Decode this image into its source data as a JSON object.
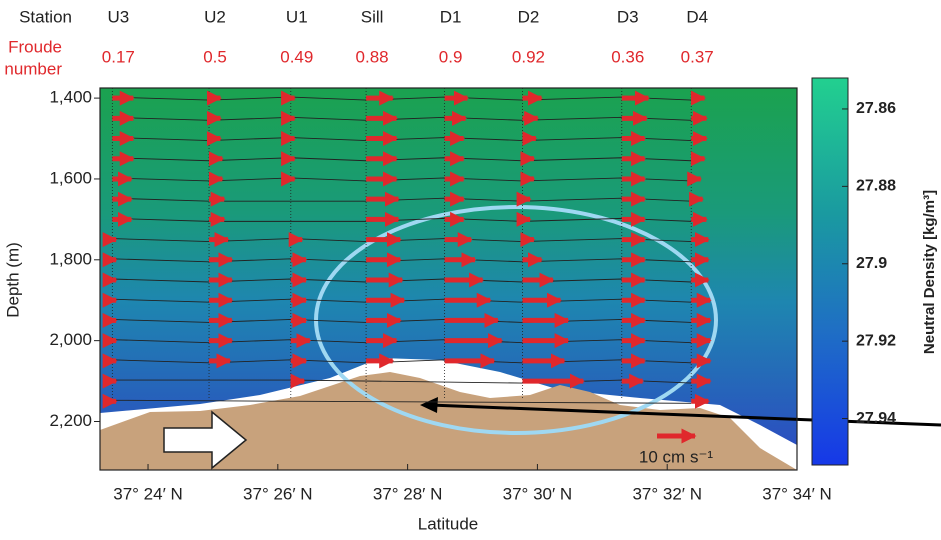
{
  "chart_data": {
    "type": "vector-section",
    "header_station": "Station",
    "header_froude": [
      "Froude",
      "number"
    ],
    "xlabel": "Latitude",
    "ylabel": "Depth (m)",
    "colorbar_label": "Neutral Density [kg/m³]",
    "xlim": [
      23.26,
      34
    ],
    "ylim": [
      1375,
      2320
    ],
    "clim": [
      27.852,
      27.952
    ],
    "xticks": [
      {
        "value": 24,
        "label": "37° 24′ N"
      },
      {
        "value": 26,
        "label": "37° 26′ N"
      },
      {
        "value": 28,
        "label": "37° 28′ N"
      },
      {
        "value": 30,
        "label": "37° 30′ N"
      },
      {
        "value": 32,
        "label": "37° 32′ N"
      },
      {
        "value": 34,
        "label": "37° 34′ N"
      }
    ],
    "yticks": [
      {
        "value": 1400,
        "label": "1,400"
      },
      {
        "value": 1600,
        "label": "1,600"
      },
      {
        "value": 1800,
        "label": "1,800"
      },
      {
        "value": 2000,
        "label": "2,000"
      },
      {
        "value": 2200,
        "label": "2,200"
      }
    ],
    "cticks": [
      27.86,
      27.88,
      27.9,
      27.92,
      27.94
    ],
    "scale_arrow": {
      "value": 10,
      "label": "10 cm s⁻¹"
    },
    "depths": [
      1400,
      1450,
      1500,
      1550,
      1600,
      1650,
      1700,
      1750,
      1800,
      1850,
      1900,
      1950,
      2000,
      2050,
      2100,
      2150
    ],
    "color": "#e0282c",
    "series": [
      {
        "name": "U3",
        "froude": 0.17,
        "lat": 23.45,
        "values": [
          5.5,
          5.5,
          5.5,
          5.5,
          5,
          5,
          5,
          1,
          1,
          1,
          1,
          1,
          1,
          1,
          1,
          1
        ]
      },
      {
        "name": "U2",
        "froude": 0.5,
        "lat": 24.94,
        "values": [
          3,
          3,
          3,
          3.5,
          3.5,
          4,
          4,
          5,
          6,
          6,
          6,
          6,
          6,
          5.5,
          null,
          null
        ]
      },
      {
        "name": "U1",
        "froude": 0.49,
        "lat": 26.2,
        "values": [
          1,
          1,
          1,
          1,
          1,
          null,
          null,
          3,
          4,
          4,
          4,
          4,
          5,
          4,
          3.5,
          null
        ]
      },
      {
        "name": "Sill",
        "froude": 0.88,
        "lat": 27.36,
        "values": [
          7,
          8,
          8,
          8,
          8,
          8.5,
          8.5,
          9,
          9,
          9.5,
          10,
          9,
          8,
          7,
          null,
          null
        ]
      },
      {
        "name": "D1",
        "froude": 0.9,
        "lat": 28.57,
        "values": [
          6,
          5.5,
          5,
          5,
          5,
          5,
          5,
          7,
          8,
          10,
          12,
          14,
          15,
          13,
          null,
          null
        ]
      },
      {
        "name": "D2",
        "froude": 0.92,
        "lat": 29.77,
        "values": [
          5,
          4,
          3.5,
          3,
          3,
          2,
          2,
          3,
          5,
          8,
          10,
          12,
          12,
          11,
          16,
          null
        ]
      },
      {
        "name": "D3",
        "froude": 0.36,
        "lat": 31.3,
        "values": [
          7,
          6.5,
          6,
          6,
          6,
          6,
          6,
          6,
          6,
          6,
          6,
          6,
          6,
          6,
          5.5,
          null
        ]
      },
      {
        "name": "D4",
        "froude": 0.37,
        "lat": 32.37,
        "values": [
          3.5,
          4,
          4,
          3.5,
          2.5,
          3,
          4,
          4.5,
          4.5,
          4.5,
          5,
          5,
          5,
          5,
          5,
          4.5
        ]
      }
    ]
  }
}
